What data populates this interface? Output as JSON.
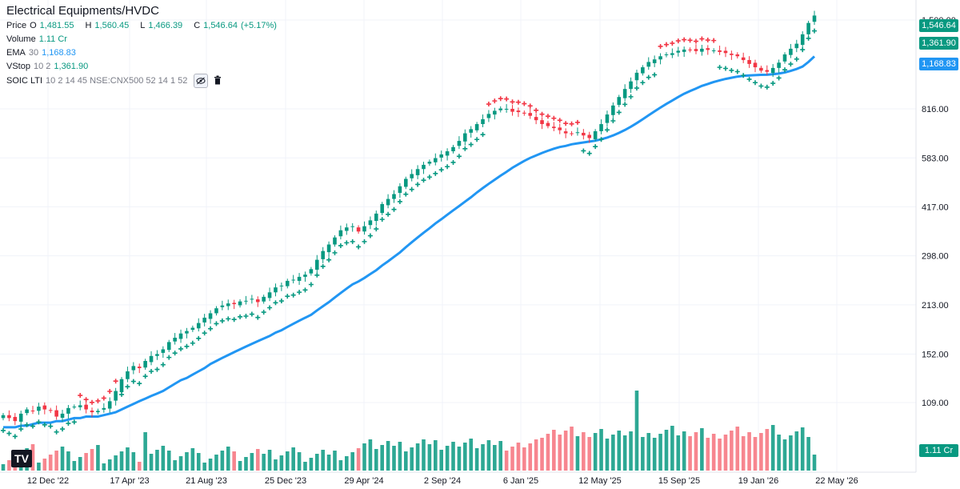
{
  "legend": {
    "title": "Electrical Equipments/HVDC",
    "price_label": "Price",
    "o_label": "O",
    "o_value": "1,481.55",
    "h_label": "H",
    "h_value": "1,560.45",
    "l_label": "L",
    "l_value": "1,466.39",
    "c_label": "C",
    "c_value": "1,546.64",
    "change": "(+5.17%)",
    "volume_label": "Volume",
    "volume_value": "1.11 Cr",
    "ema_label": "EMA",
    "ema_param": "30",
    "ema_value": "1,168.83",
    "vstop_label": "VStop",
    "vstop_param": "10 2",
    "vstop_value": "1,361.90",
    "soic_label": "SOIC LTI",
    "soic_param": "10 2 14 45 NSE:CNX500 52 14 1 52",
    "eye_icon": "eye-off-icon",
    "trash_icon": "trash-icon"
  },
  "badges": {
    "close": "1,546.64",
    "vstop": "1,361.90",
    "ema": "1,168.83",
    "volume": "1.11 Cr"
  },
  "logo_text": "TV",
  "colors": {
    "up": "#089981",
    "down": "#f23645",
    "ema": "#2196f3",
    "grid": "#f0f3fa"
  },
  "chart_data": {
    "type": "candlestick",
    "scale": "log",
    "y_ticks": [
      "1,500.00",
      "816.00",
      "583.00",
      "417.00",
      "298.00",
      "213.00",
      "152.00",
      "109.00"
    ],
    "x_ticks": [
      "12 Dec '22",
      "17 Apr '23",
      "21 Aug '23",
      "25 Dec '23",
      "29 Apr '24",
      "2 Sep '24",
      "6 Jan '25",
      "12 May '25",
      "15 Sep '25",
      "19 Jan '26",
      "22 May '26"
    ],
    "ylim": [
      80,
      1650
    ],
    "close": [
      100,
      98,
      96,
      101,
      104,
      103,
      106,
      104,
      103,
      99,
      101,
      105,
      106,
      107,
      104,
      102,
      103,
      105,
      110,
      118,
      128,
      135,
      140,
      138,
      145,
      150,
      152,
      157,
      165,
      170,
      175,
      178,
      182,
      188,
      195,
      201,
      208,
      212,
      215,
      214,
      218,
      219,
      222,
      217,
      225,
      232,
      240,
      243,
      251,
      253,
      258,
      262,
      272,
      290,
      308,
      322,
      338,
      355,
      362,
      365,
      352,
      365,
      380,
      398,
      425,
      440,
      455,
      480,
      505,
      522,
      540,
      556,
      568,
      582,
      597,
      610,
      628,
      655,
      690,
      710,
      735,
      760,
      788,
      805,
      818,
      816,
      800,
      798,
      790,
      778,
      755,
      735,
      725,
      715,
      705,
      690,
      688,
      695,
      680,
      668,
      700,
      735,
      785,
      835,
      885,
      935,
      985,
      1045,
      1085,
      1125,
      1145,
      1170,
      1185,
      1195,
      1215,
      1225,
      1220,
      1212,
      1232,
      1222,
      1218,
      1205,
      1196,
      1180,
      1170,
      1140,
      1110,
      1085,
      1060,
      1052,
      1080,
      1120,
      1185,
      1232,
      1275,
      1360,
      1470,
      1546.64
    ],
    "ema": [
      92,
      92,
      92,
      93,
      93,
      94,
      95,
      95,
      95,
      96,
      96,
      97,
      98,
      98,
      99,
      99,
      99,
      100,
      101,
      102,
      104,
      106,
      108,
      110,
      112,
      114,
      116,
      118,
      121,
      124,
      127,
      129,
      132,
      135,
      138,
      142,
      145,
      148,
      151,
      154,
      157,
      160,
      163,
      166,
      169,
      172,
      176,
      179,
      183,
      187,
      191,
      195,
      199,
      205,
      211,
      217,
      224,
      231,
      238,
      245,
      250,
      256,
      263,
      270,
      279,
      287,
      296,
      305,
      316,
      327,
      338,
      349,
      360,
      372,
      383,
      395,
      407,
      419,
      432,
      445,
      460,
      474,
      488,
      502,
      516,
      530,
      545,
      558,
      571,
      583,
      593,
      603,
      612,
      621,
      628,
      633,
      640,
      644,
      648,
      652,
      656,
      662,
      670,
      680,
      692,
      706,
      722,
      740,
      760,
      781,
      802,
      823,
      844,
      864,
      885,
      905,
      922,
      938,
      955,
      968,
      981,
      992,
      1002,
      1010,
      1018,
      1023,
      1026,
      1028,
      1030,
      1031,
      1034,
      1039,
      1047,
      1058,
      1072,
      1090,
      1125,
      1168.83
    ],
    "volume_series": [
      "volume",
      "1.11 Cr last"
    ]
  }
}
